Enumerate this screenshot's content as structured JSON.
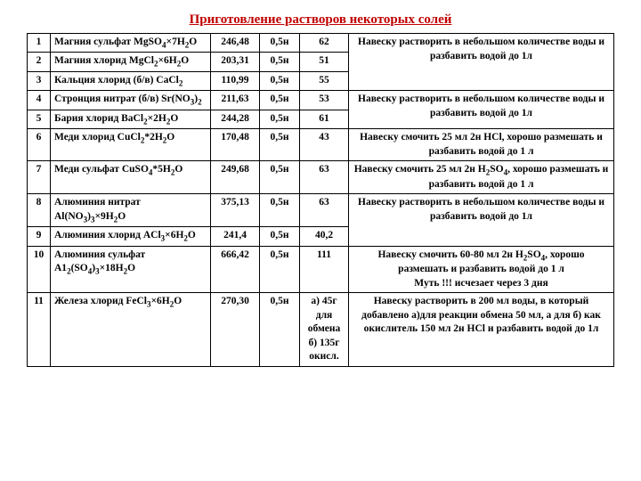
{
  "title": "Приготовление растворов некоторых солей",
  "colors": {
    "title": "#c00000",
    "border": "#000000",
    "text": "#000000",
    "background": "#ffffff"
  },
  "rows": [
    {
      "n": "1",
      "name_html": "Магния сульфат  MgSO<sub>4</sub>×7H<sub>2</sub>O",
      "mw": "246,48",
      "conc": "0,5н",
      "mass": "62",
      "method_html": "Навеску  растворить в небольшом количестве воды и разбавить водой до 1л",
      "method_rowspan": 3
    },
    {
      "n": "2",
      "name_html": "Магния хлорид  MgCl<sub>2</sub>×6H<sub>2</sub>O",
      "mw": "203,31",
      "conc": "0,5н",
      "mass": "51"
    },
    {
      "n": "3",
      "name_html": "Кальция хлорид  (б/в) CaCl<sub>2</sub>",
      "mw": "110,99",
      "conc": "0,5н",
      "mass": "55"
    },
    {
      "n": "4",
      "name_html": "Стронция нитрат (б/в) Sr(NO<sub>3</sub>)<sub>2</sub>",
      "mw": "211,63",
      "conc": "0,5н",
      "mass": "53",
      "method_html": "Навеску  растворить в небольшом количестве воды и разбавить водой до 1л",
      "method_rowspan": 2
    },
    {
      "n": "5",
      "name_html": "Бария хлорид  BaCl<sub>2</sub>×2H<sub>2</sub>O",
      "mw": "244,28",
      "conc": "0,5н",
      "mass": "61"
    },
    {
      "n": "6",
      "name_html": "Меди хлорид  CuCl<sub>2</sub>*2H<sub>2</sub>O",
      "mw": "170,48",
      "conc": "0,5н",
      "mass": "43",
      "method_html": "Навеску смочить 25 мл 2н HCl, хорошо размешать и разбавить водой до 1 л",
      "method_rowspan": 1
    },
    {
      "n": "7",
      "name_html": "Меди сульфат  CuSO<sub>4</sub>*5H<sub>2</sub>O",
      "mw": "249,68",
      "conc": "0,5н",
      "mass": "63",
      "method_html": "Навеску смочить 25 мл 2н H<sub>2</sub>SO<sub>4</sub>, хорошо размешать и разбавить водой до 1 л",
      "method_rowspan": 1
    },
    {
      "n": "8",
      "name_html": "Алюминия нитрат Al(NO<sub>3</sub>)<sub>3</sub>×9H<sub>2</sub>O",
      "mw": "375,13",
      "conc": "0,5н",
      "mass": "63",
      "method_html": "Навеску  растворить в небольшом количестве воды и разбавить водой до 1л",
      "method_rowspan": 2
    },
    {
      "n": "9",
      "name_html": "Алюминия хлорид  AСl<sub>3</sub>×6H<sub>2</sub>O",
      "mw": "241,4",
      "conc": "0,5н",
      "mass": "40,2"
    },
    {
      "n": "10",
      "name_html": "Алюминия сульфат  A1<sub>2</sub>(SO<sub>4</sub>)<sub>3</sub>×18H<sub>2</sub>O",
      "mw": "666,42",
      "conc": "0,5н",
      "mass": "111",
      "method_html": "Навеску смочить 60-80 мл 2н H<sub>2</sub>SO<sub>4</sub>, хорошо размешать и разбавить водой до 1 л<br>Муть !!! исчезает через 3 дня",
      "method_rowspan": 1
    },
    {
      "n": "11",
      "name_html": "Железа хлорид FeCl<sub>3</sub>×6H<sub>2</sub>O",
      "mw": "270,30",
      "conc": "0,5н",
      "mass_html": "а) 45г для обмена б)&nbsp;135г окисл.",
      "method_html": "Навеску  растворить в 200 мл воды, в который добавлено а)для реакции обмена 50 мл, а для б)  как окислитель 150 мл 2н   HCl и разбавить водой до 1л",
      "method_rowspan": 1
    }
  ]
}
